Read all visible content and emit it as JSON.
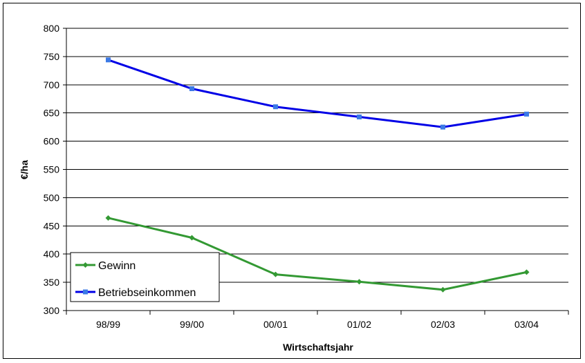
{
  "chart_data": {
    "type": "line",
    "categories": [
      "98/99",
      "99/00",
      "00/01",
      "01/02",
      "02/03",
      "03/04"
    ],
    "series": [
      {
        "name": "Gewinn",
        "values": [
          464,
          429,
          364,
          351,
          337,
          368
        ],
        "color": "#339933",
        "marker": "diamond"
      },
      {
        "name": "Betriebseinkommen",
        "values": [
          744,
          693,
          661,
          643,
          625,
          648
        ],
        "color": "#0000e6",
        "marker": "square"
      }
    ],
    "title": "",
    "xlabel": "Wirtschaftsjahr",
    "ylabel": "€/ha",
    "ylim": [
      300,
      800
    ],
    "yticks": [
      "300",
      "350",
      "400",
      "450",
      "500",
      "550",
      "600",
      "650",
      "700",
      "750",
      "800"
    ],
    "grid": true,
    "legend": "bottom-left"
  }
}
